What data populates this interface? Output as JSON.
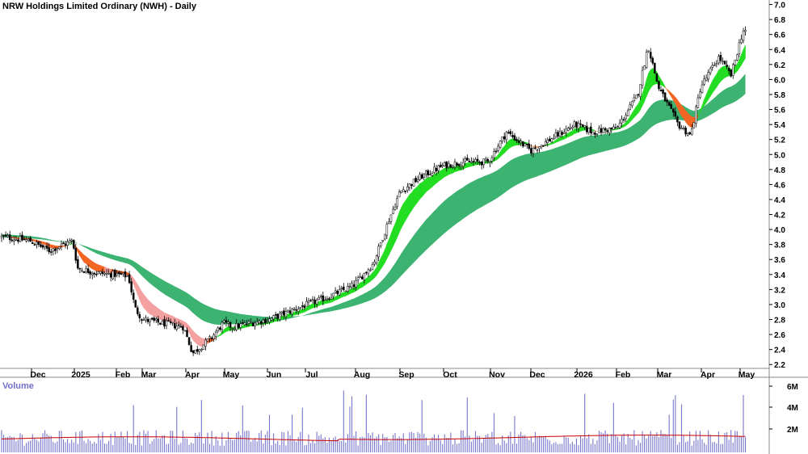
{
  "chart_data": {
    "type": "candlestick",
    "title": "NRW Holdings Limited Ordinary (NWH) - Daily",
    "price_axis": {
      "range": [
        2.0,
        7.0
      ],
      "ticks": [
        2.2,
        2.4,
        2.6,
        2.8,
        3.0,
        3.2,
        3.4,
        3.6,
        3.8,
        4.0,
        4.2,
        4.4,
        4.6,
        4.8,
        5.0,
        5.2,
        5.4,
        5.6,
        5.8,
        6.0,
        6.2,
        6.4,
        6.6,
        6.8,
        7.0
      ]
    },
    "time_axis": [
      "Dec",
      "2025",
      "Feb",
      "Mar",
      "Apr",
      "May",
      "Jun",
      "Jul",
      "Aug",
      "Sep",
      "Oct",
      "Nov",
      "Dec",
      "2026",
      "Feb",
      "Mar",
      "Apr",
      "May"
    ],
    "price_series": [
      [
        "Nov 18 2024",
        3.9
      ],
      [
        "Dec 2 2024",
        3.85
      ],
      [
        "Dec 16 2024",
        3.72
      ],
      [
        "Jan 2 2025",
        3.85
      ],
      [
        "Jan 6 2025",
        3.48
      ],
      [
        "Jan 20 2025",
        3.42
      ],
      [
        "Feb 3 2025",
        3.4
      ],
      [
        "Feb 17 2025",
        3.38
      ],
      [
        "Feb 24 2025",
        2.95
      ],
      [
        "Mar 3 2025",
        2.8
      ],
      [
        "Mar 17 2025",
        2.75
      ],
      [
        "Apr 1 2025",
        2.7
      ],
      [
        "Apr 8 2025",
        2.35
      ],
      [
        "Apr 22 2025",
        2.55
      ],
      [
        "May 1 2025",
        2.75
      ],
      [
        "May 8 2025",
        2.7
      ],
      [
        "May 20 2025",
        2.75
      ],
      [
        "Jun 3 2025",
        2.8
      ],
      [
        "Jun 17 2025",
        2.9
      ],
      [
        "Jul 1 2025",
        3.0
      ],
      [
        "Jul 15 2025",
        3.1
      ],
      [
        "Aug 1 2025",
        3.25
      ],
      [
        "Aug 15 2025",
        3.55
      ],
      [
        "Aug 25 2025",
        4.1
      ],
      [
        "Sep 2 2025",
        4.5
      ],
      [
        "Sep 16 2025",
        4.7
      ],
      [
        "Oct 1 2025",
        4.85
      ],
      [
        "Oct 15 2025",
        4.9
      ],
      [
        "Nov 1 2025",
        4.9
      ],
      [
        "Nov 14 2025",
        5.3
      ],
      [
        "Dec 1 2025",
        5.05
      ],
      [
        "Dec 15 2025",
        5.2
      ],
      [
        "Jan 2 2026",
        5.4
      ],
      [
        "Jan 15 2026",
        5.3
      ],
      [
        "Feb 2 2026",
        5.35
      ],
      [
        "Feb 16 2026",
        5.8
      ],
      [
        "Feb 23 2026",
        6.45
      ],
      [
        "Mar 2 2026",
        5.9
      ],
      [
        "Mar 16 2026",
        5.4
      ],
      [
        "Mar 25 2026",
        5.25
      ],
      [
        "Apr 1 2026",
        5.9
      ],
      [
        "Apr 15 2026",
        6.3
      ],
      [
        "Apr 24 2026",
        6.05
      ],
      [
        "May 4 2026",
        6.65
      ]
    ],
    "volume_axis": {
      "ticks": [
        "2M",
        "4M",
        "6M"
      ]
    },
    "volume_average": 1.2
  }
}
